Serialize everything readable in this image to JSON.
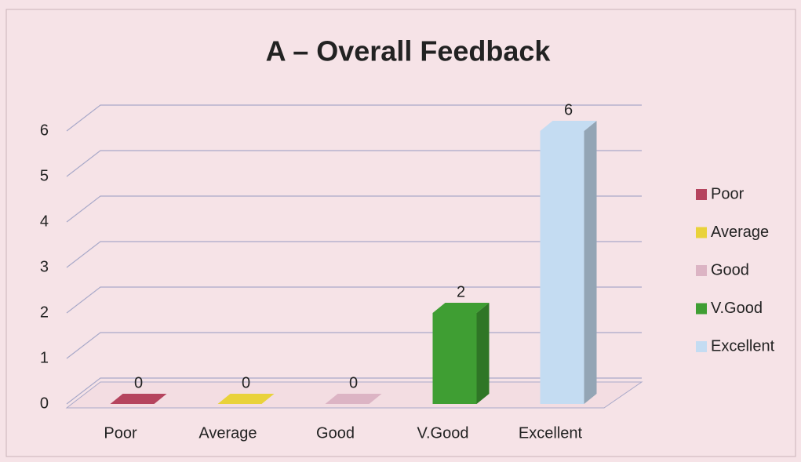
{
  "chart_data": {
    "type": "bar3d",
    "title": "A – Overall Feedback",
    "categories": [
      "Poor",
      "Average",
      "Good",
      "V.Good",
      "Excellent"
    ],
    "values": [
      0,
      0,
      0,
      2,
      6
    ],
    "colors": [
      "#b5445e",
      "#e9d23a",
      "#dcb4c4",
      "#3f9e33",
      "#c4dcf2"
    ],
    "ylim": [
      0,
      6
    ],
    "yticks": [
      0,
      1,
      2,
      3,
      4,
      5,
      6
    ],
    "grid": true,
    "legend": "right"
  }
}
